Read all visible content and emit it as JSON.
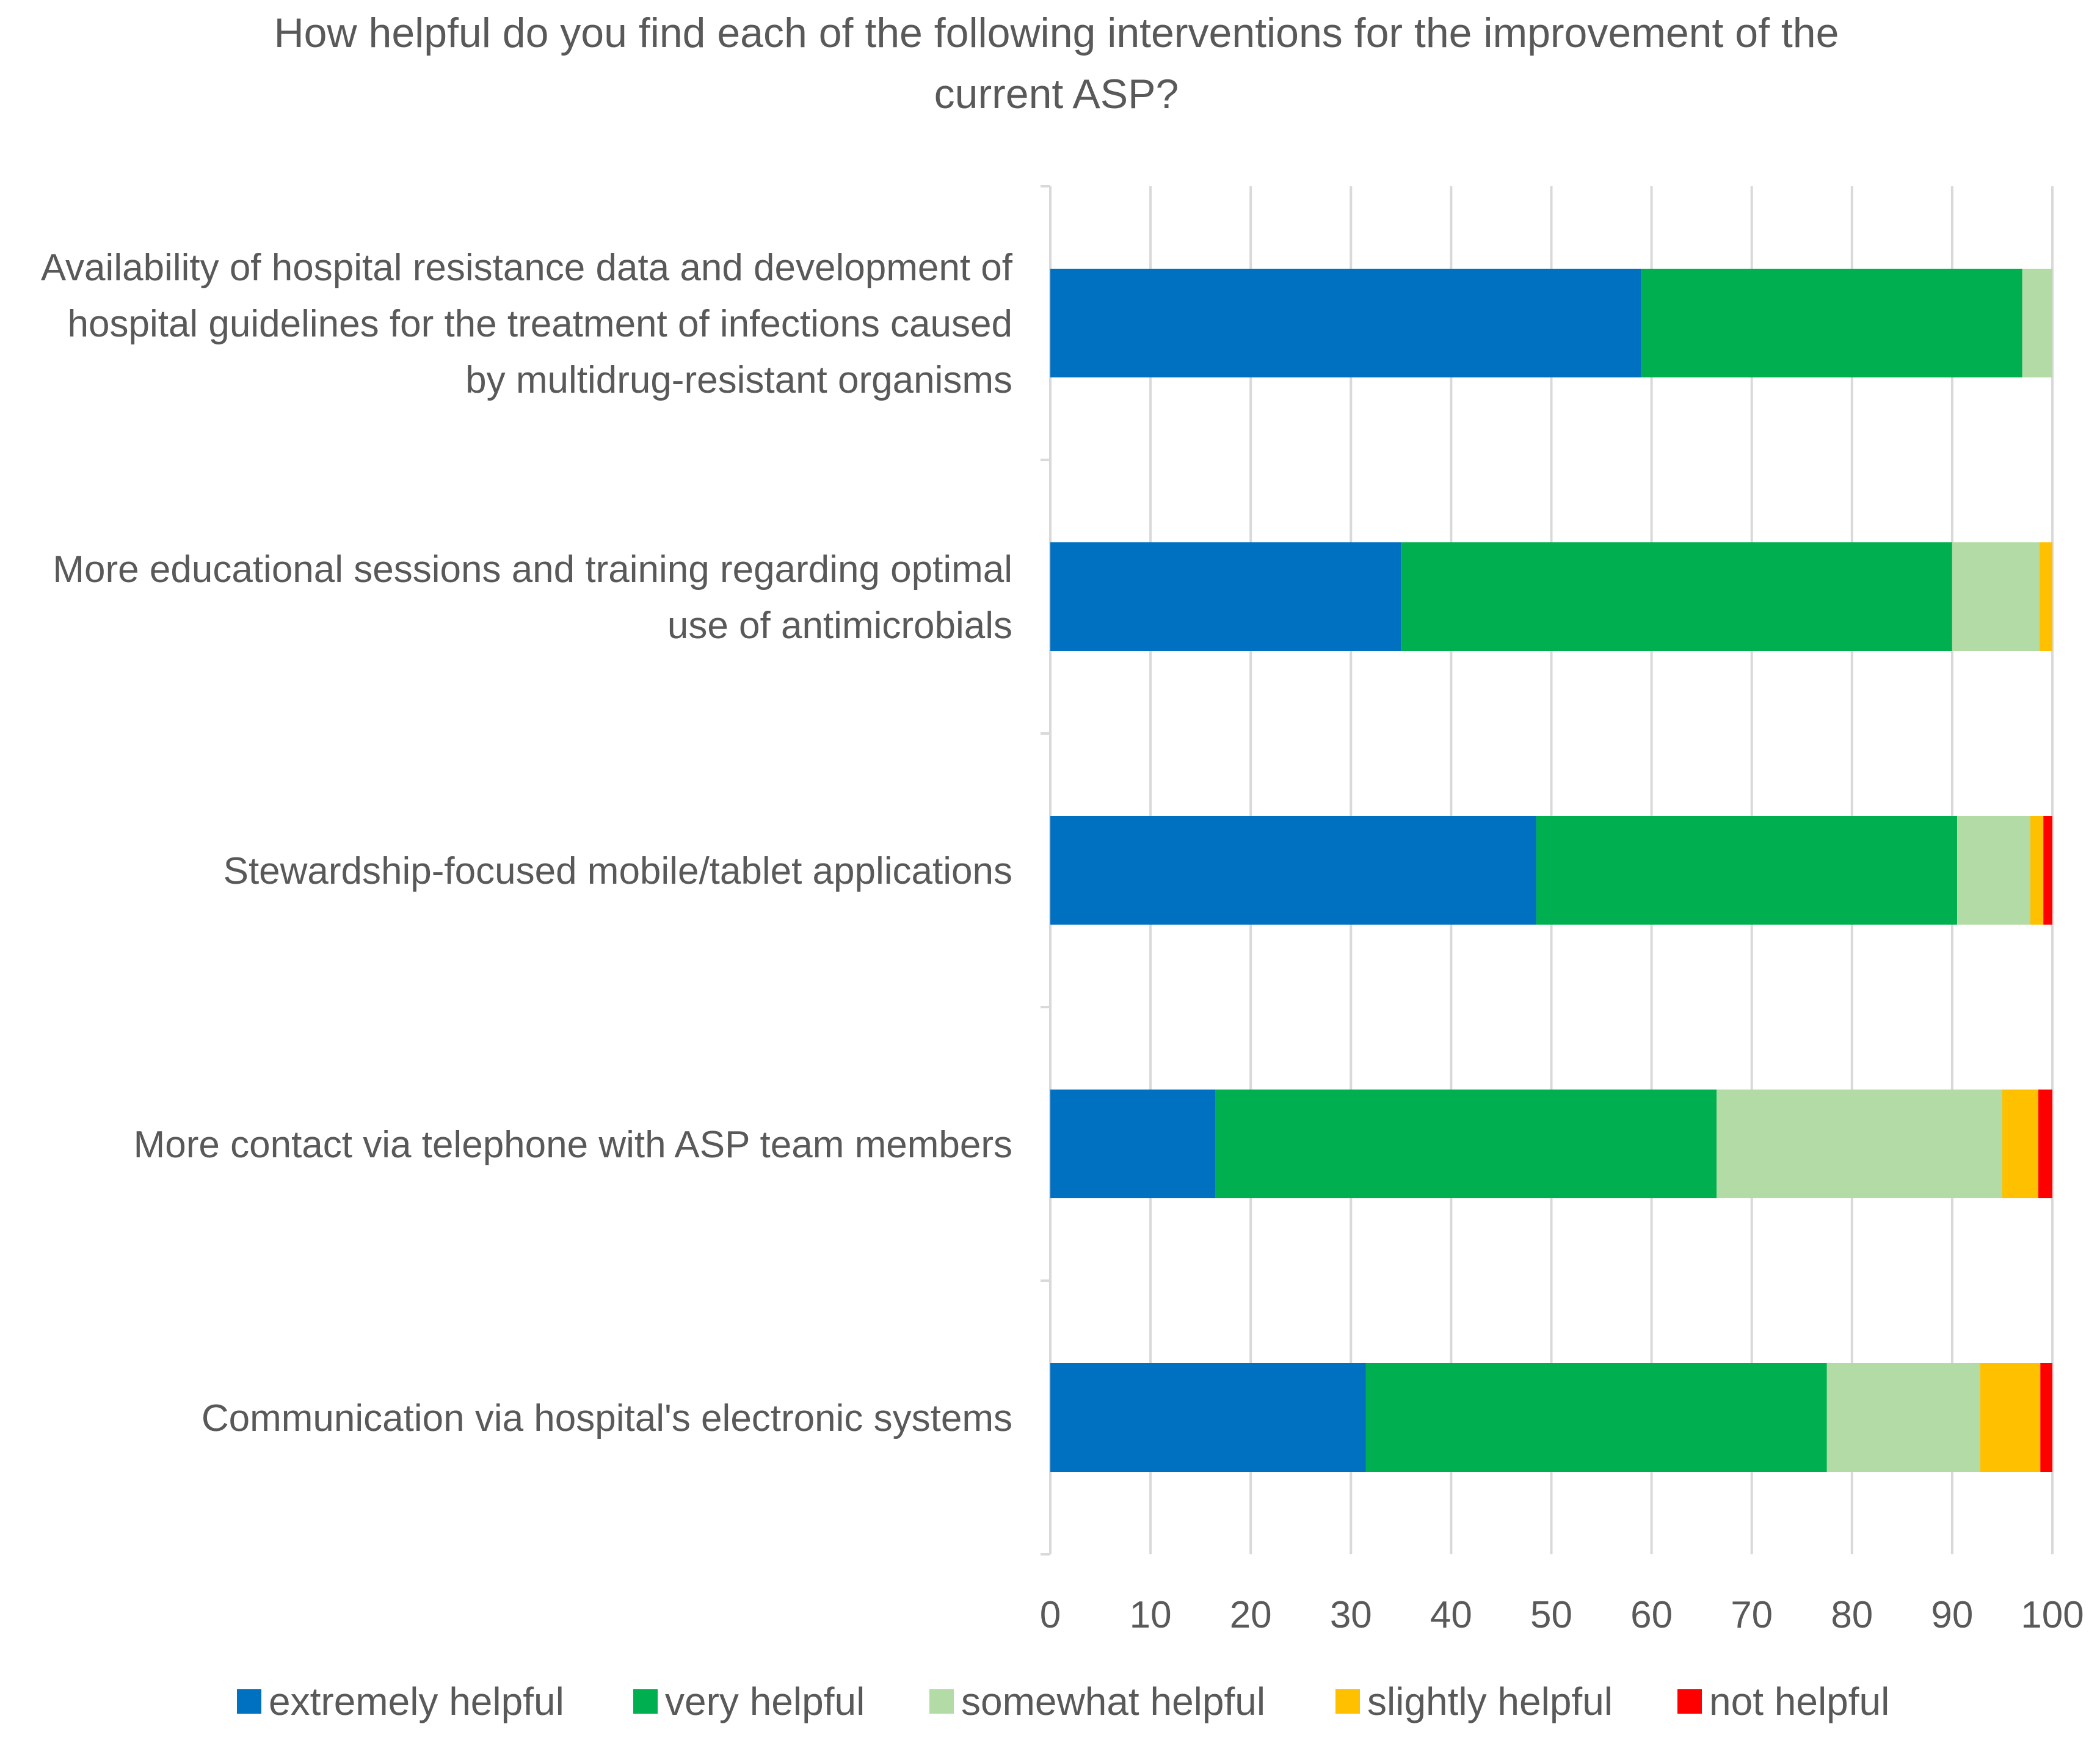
{
  "chart_data": {
    "type": "bar",
    "orientation": "horizontal",
    "stacked": true,
    "title_lines": [
      "How helpful do you find each of the following interventions for the improvement of the",
      "current ASP?"
    ],
    "categories": [
      [
        "Availability of hospital resistance data and development of",
        "hospital guidelines for the treatment of infections caused",
        "by multidrug-resistant organisms"
      ],
      [
        "More educational sessions and training regarding optimal",
        "use of antimicrobials"
      ],
      [
        "Stewardship-focused mobile/tablet applications"
      ],
      [
        "More contact via telephone with ASP team members"
      ],
      [
        "Communication via hospital's electronic systems"
      ]
    ],
    "series": [
      {
        "name": "extremely helpful",
        "color": "#0070c0",
        "values": [
          59,
          35,
          48.5,
          16.5,
          31.5
        ]
      },
      {
        "name": "very helpful",
        "color": "#00b050",
        "values": [
          38,
          55,
          42,
          50,
          46
        ]
      },
      {
        "name": "somewhat helpful",
        "color": "#b3dba5",
        "values": [
          3,
          8.7,
          7.3,
          28.5,
          15.3
        ]
      },
      {
        "name": "slightly helpful",
        "color": "#ffc000",
        "values": [
          0,
          1.3,
          1.3,
          3.6,
          6
        ]
      },
      {
        "name": "not helpful",
        "color": "#ff0000",
        "values": [
          0,
          0,
          0.9,
          1.4,
          1.2
        ]
      }
    ],
    "xlim": [
      0,
      100
    ],
    "xticks": [
      "0",
      "10",
      "20",
      "30",
      "40",
      "50",
      "60",
      "70",
      "80",
      "90",
      "100"
    ],
    "grid": true,
    "legend": "bottom"
  }
}
